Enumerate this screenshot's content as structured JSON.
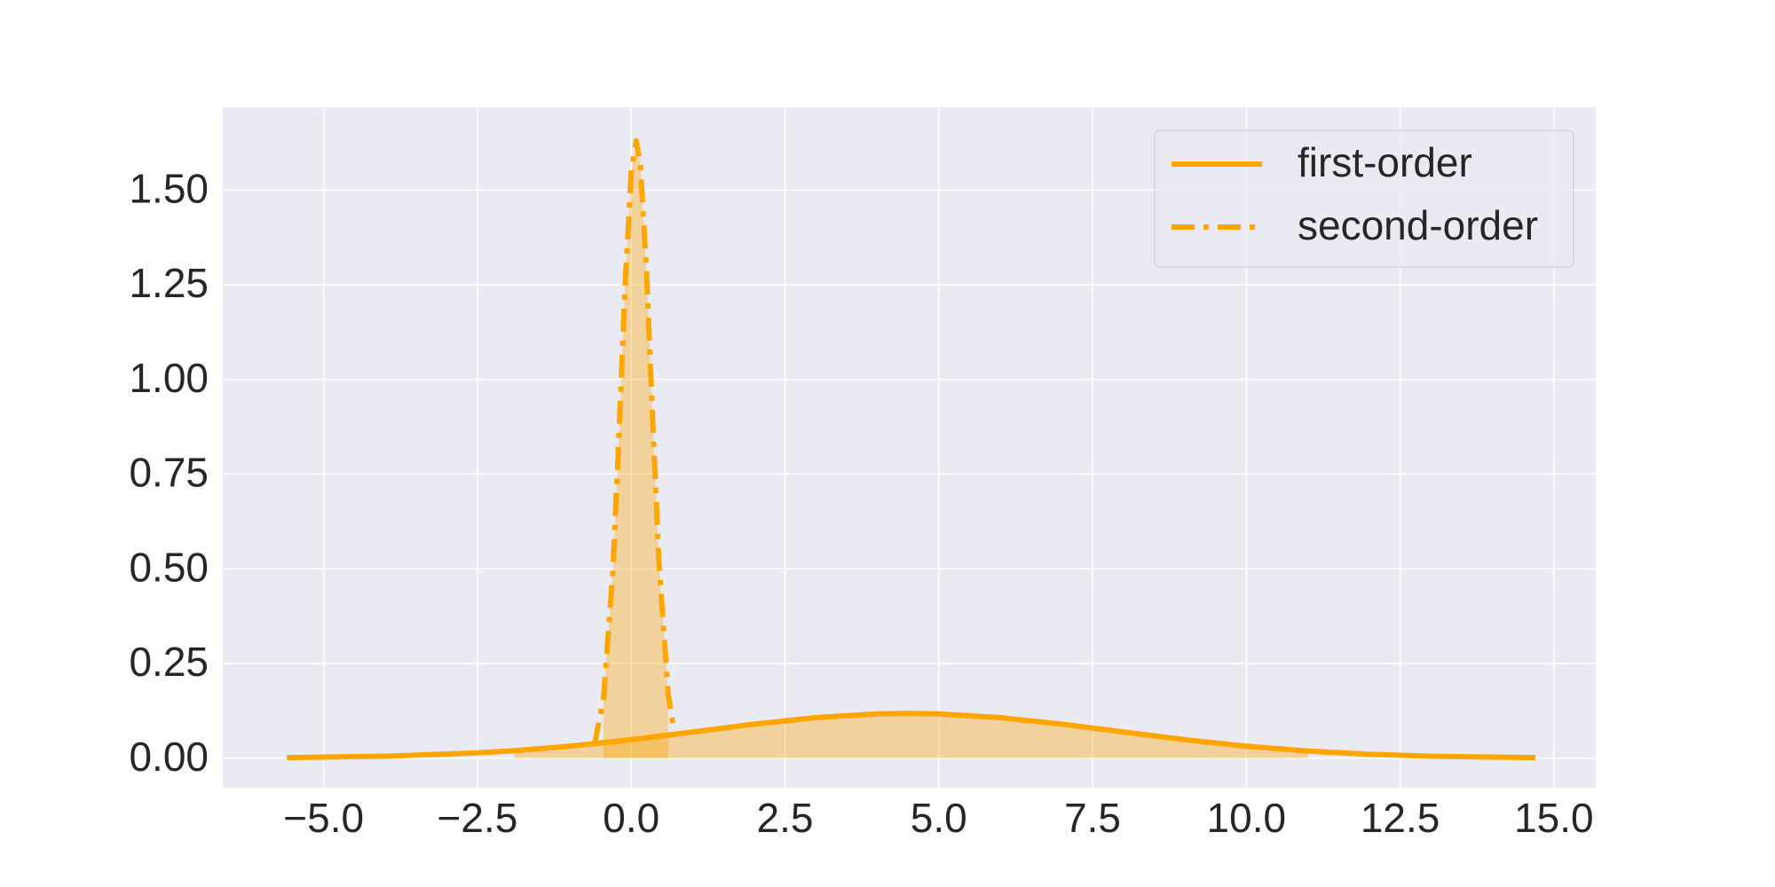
{
  "chart_data": {
    "type": "line",
    "xlim": [
      -6.64,
      15.68
    ],
    "ylim": [
      -0.078,
      1.718
    ],
    "xticks": [
      {
        "value": -5,
        "label": "−5.0"
      },
      {
        "value": -2.5,
        "label": "−2.5"
      },
      {
        "value": 0,
        "label": "0.0"
      },
      2.5,
      {
        "value": 5,
        "label": "5.0"
      },
      7.5,
      {
        "value": 10,
        "label": "10.0"
      },
      12.5,
      {
        "value": 15,
        "label": "15.0"
      }
    ],
    "yticks": [
      {
        "value": 0,
        "label": "0.00"
      },
      0.25,
      {
        "value": 0.5,
        "label": "0.50"
      },
      0.75,
      {
        "value": 1,
        "label": "1.00"
      },
      1.25,
      {
        "value": 1.5,
        "label": "1.50"
      }
    ],
    "grid": true,
    "legend": "upper right",
    "series": [
      {
        "name": "first-order",
        "color": "#ffa500",
        "linestyle": "solid",
        "fill_range": [
          -1.9,
          11.0
        ],
        "x": [
          -5.6,
          -4,
          -2.5,
          -1.9,
          -1,
          0,
          1,
          2,
          3,
          4,
          4.5,
          5,
          6,
          7,
          8,
          9,
          10,
          11,
          12,
          13,
          14.7
        ],
        "values": [
          0.0014,
          0.005,
          0.0138,
          0.0196,
          0.0314,
          0.0487,
          0.069,
          0.0898,
          0.1069,
          0.1167,
          0.118,
          0.1167,
          0.1069,
          0.0898,
          0.069,
          0.0487,
          0.0314,
          0.0186,
          0.0101,
          0.005,
          0.0012
        ]
      },
      {
        "name": "second-order",
        "color": "#ffa500",
        "linestyle": "dashdot",
        "fill_range": [
          -0.45,
          0.6
        ],
        "x": [
          -0.6,
          -0.45,
          -0.3,
          -0.2,
          -0.1,
          0,
          0.08,
          0.15,
          0.25,
          0.35,
          0.45,
          0.6,
          0.7
        ],
        "values": [
          0.034,
          0.157,
          0.489,
          0.848,
          1.244,
          1.545,
          1.63,
          1.565,
          1.281,
          0.888,
          0.521,
          0.171,
          0.066
        ]
      }
    ]
  }
}
